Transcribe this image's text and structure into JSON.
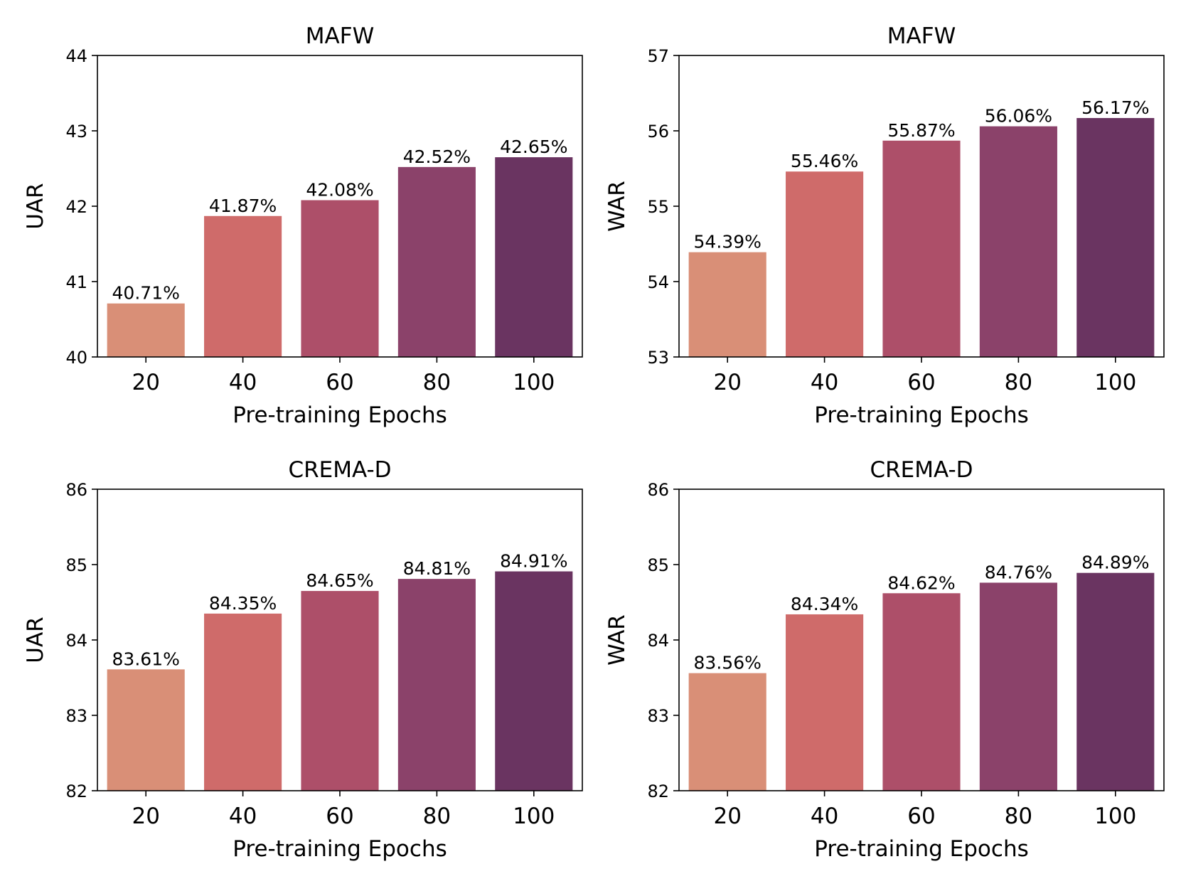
{
  "colors": [
    "#d98f77",
    "#cf6b6a",
    "#ad4f69",
    "#8b426a",
    "#6a3461"
  ],
  "chart_data": [
    {
      "type": "bar",
      "title": "MAFW",
      "xlabel": "Pre-training Epochs",
      "ylabel": "UAR",
      "categories": [
        "20",
        "40",
        "60",
        "80",
        "100"
      ],
      "values": [
        40.71,
        41.87,
        42.08,
        42.52,
        42.65
      ],
      "value_labels": [
        "40.71%",
        "41.87%",
        "42.08%",
        "42.52%",
        "42.65%"
      ],
      "ylim": [
        40,
        44
      ],
      "yticks": [
        "40",
        "41",
        "42",
        "43",
        "44"
      ]
    },
    {
      "type": "bar",
      "title": "MAFW",
      "xlabel": "Pre-training Epochs",
      "ylabel": "WAR",
      "categories": [
        "20",
        "40",
        "60",
        "80",
        "100"
      ],
      "values": [
        54.39,
        55.46,
        55.87,
        56.06,
        56.17
      ],
      "value_labels": [
        "54.39%",
        "55.46%",
        "55.87%",
        "56.06%",
        "56.17%"
      ],
      "ylim": [
        53,
        57
      ],
      "yticks": [
        "53",
        "54",
        "55",
        "56",
        "57"
      ]
    },
    {
      "type": "bar",
      "title": "CREMA-D",
      "xlabel": "Pre-training Epochs",
      "ylabel": "UAR",
      "categories": [
        "20",
        "40",
        "60",
        "80",
        "100"
      ],
      "values": [
        83.61,
        84.35,
        84.65,
        84.81,
        84.91
      ],
      "value_labels": [
        "83.61%",
        "84.35%",
        "84.65%",
        "84.81%",
        "84.91%"
      ],
      "ylim": [
        82,
        86
      ],
      "yticks": [
        "82",
        "83",
        "84",
        "85",
        "86"
      ]
    },
    {
      "type": "bar",
      "title": "CREMA-D",
      "xlabel": "Pre-training Epochs",
      "ylabel": "WAR",
      "categories": [
        "20",
        "40",
        "60",
        "80",
        "100"
      ],
      "values": [
        83.56,
        84.34,
        84.62,
        84.76,
        84.89
      ],
      "value_labels": [
        "83.56%",
        "84.34%",
        "84.62%",
        "84.76%",
        "84.89%"
      ],
      "ylim": [
        82,
        86
      ],
      "yticks": [
        "82",
        "83",
        "84",
        "85",
        "86"
      ]
    }
  ]
}
